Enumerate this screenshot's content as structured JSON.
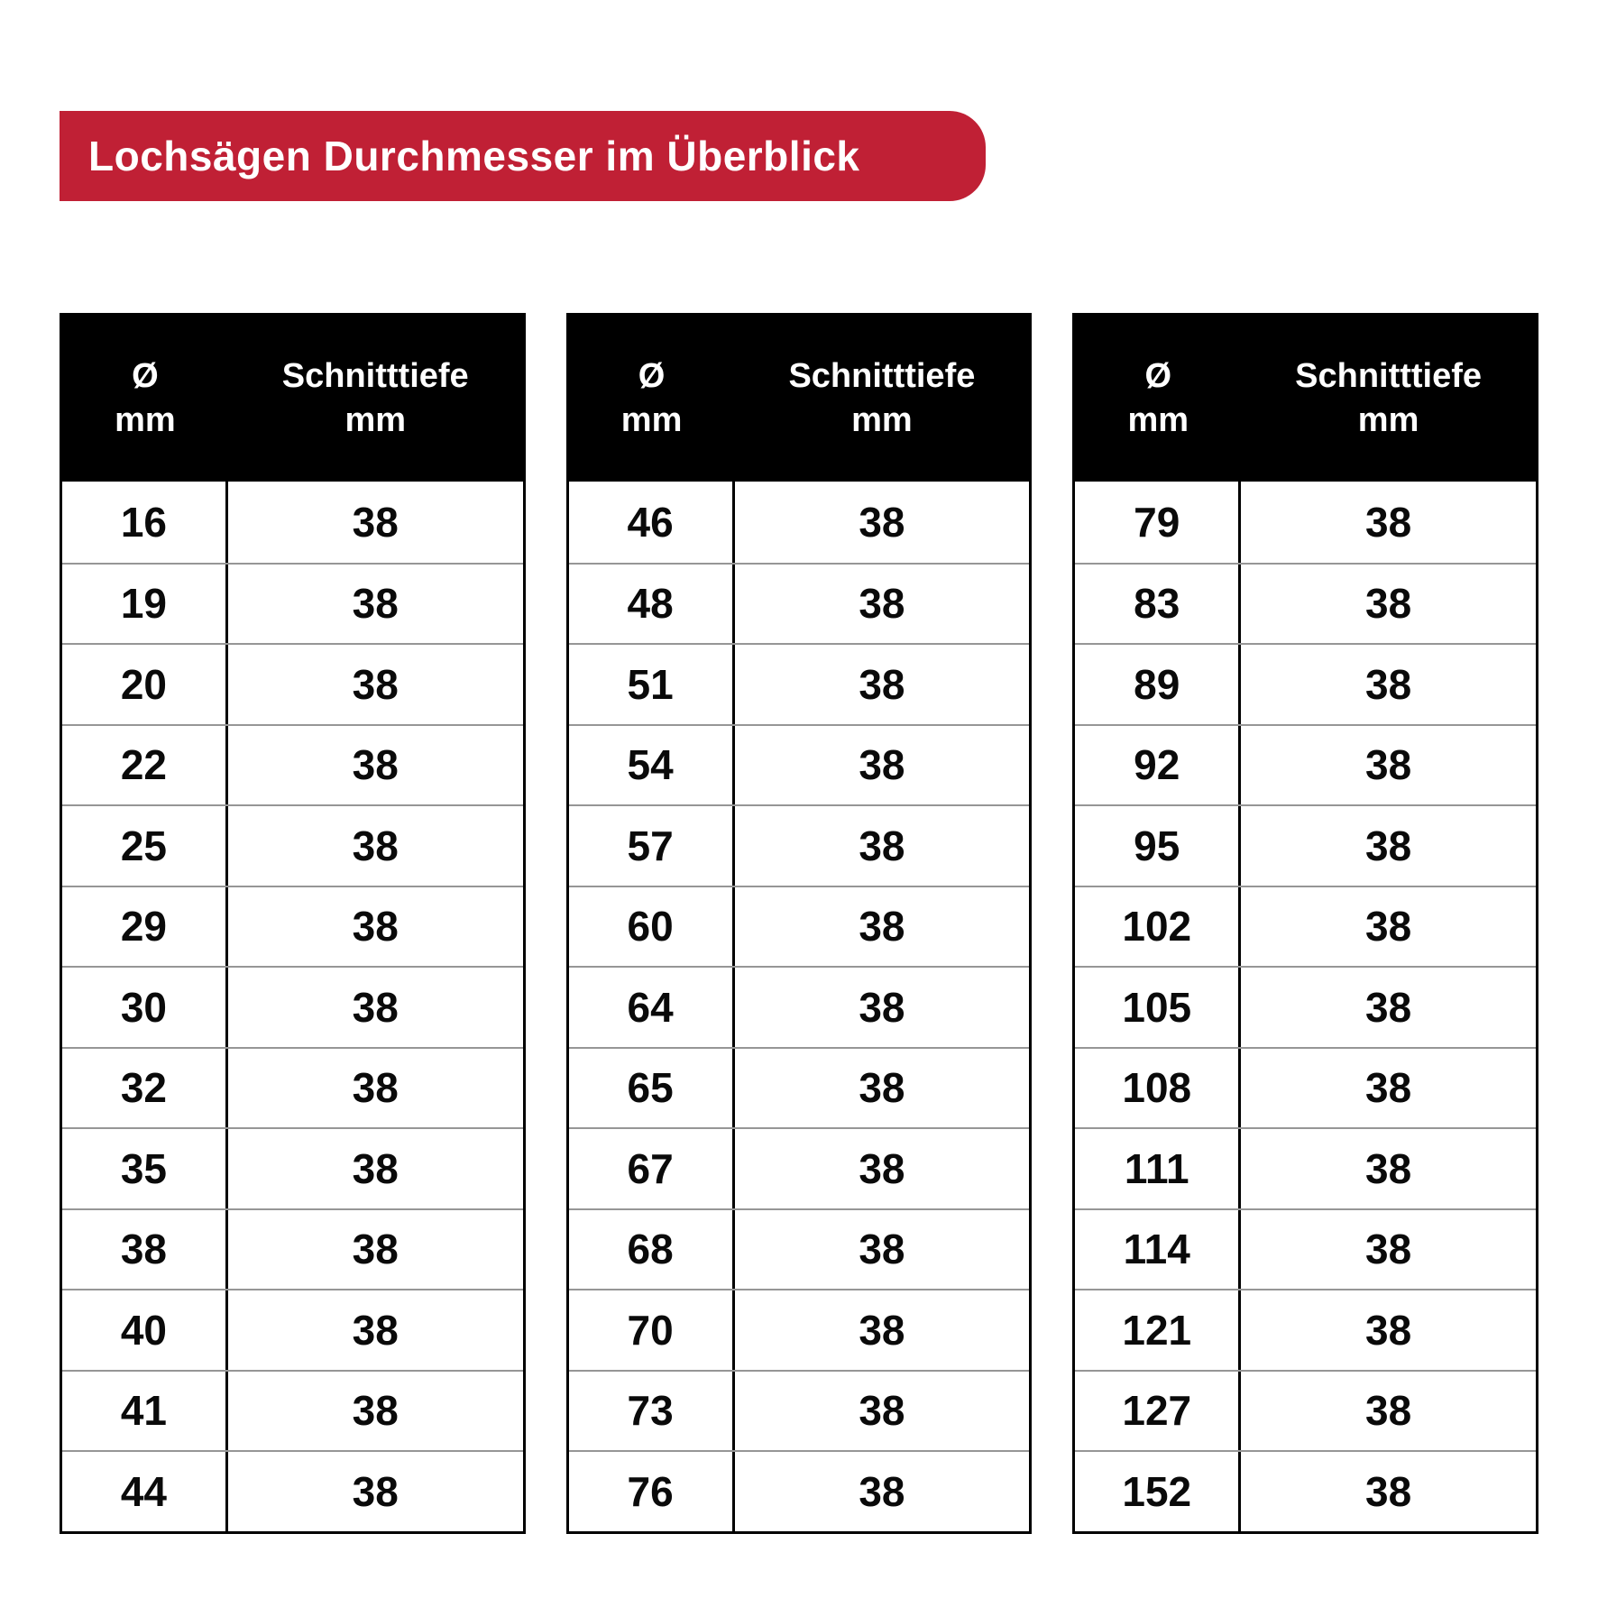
{
  "title_badge": {
    "label": "Lochsägen Durchmesser im Überblick"
  },
  "column_headers": {
    "diameter_symbol": "Ø",
    "diameter_unit": "mm",
    "depth_label": "Schnitttiefe",
    "depth_unit": "mm"
  },
  "colors": {
    "accent_red": "#c02035",
    "header_bg": "#000000",
    "header_text": "#ffffff",
    "table_border": "#000000",
    "row_divider": "#969696",
    "page_bg": "#ffffff"
  },
  "chart_data": {
    "type": "table",
    "title": "Lochsägen Durchmesser im Überblick",
    "columns": [
      "Ø mm",
      "Schnitttiefe mm"
    ],
    "tables": [
      {
        "rows": [
          [
            16,
            38
          ],
          [
            19,
            38
          ],
          [
            20,
            38
          ],
          [
            22,
            38
          ],
          [
            25,
            38
          ],
          [
            29,
            38
          ],
          [
            30,
            38
          ],
          [
            32,
            38
          ],
          [
            35,
            38
          ],
          [
            38,
            38
          ],
          [
            40,
            38
          ],
          [
            41,
            38
          ],
          [
            44,
            38
          ]
        ]
      },
      {
        "rows": [
          [
            46,
            38
          ],
          [
            48,
            38
          ],
          [
            51,
            38
          ],
          [
            54,
            38
          ],
          [
            57,
            38
          ],
          [
            60,
            38
          ],
          [
            64,
            38
          ],
          [
            65,
            38
          ],
          [
            67,
            38
          ],
          [
            68,
            38
          ],
          [
            70,
            38
          ],
          [
            73,
            38
          ],
          [
            76,
            38
          ]
        ]
      },
      {
        "rows": [
          [
            79,
            38
          ],
          [
            83,
            38
          ],
          [
            89,
            38
          ],
          [
            92,
            38
          ],
          [
            95,
            38
          ],
          [
            102,
            38
          ],
          [
            105,
            38
          ],
          [
            108,
            38
          ],
          [
            111,
            38
          ],
          [
            114,
            38
          ],
          [
            121,
            38
          ],
          [
            127,
            38
          ],
          [
            152,
            38
          ]
        ]
      }
    ]
  }
}
